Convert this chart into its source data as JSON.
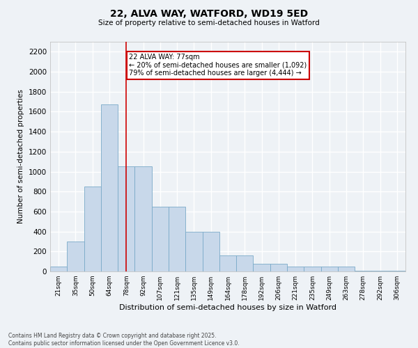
{
  "title_line1": "22, ALVA WAY, WATFORD, WD19 5ED",
  "title_line2": "Size of property relative to semi-detached houses in Watford",
  "xlabel": "Distribution of semi-detached houses by size in Watford",
  "ylabel": "Number of semi-detached properties",
  "categories": [
    "21sqm",
    "35sqm",
    "50sqm",
    "64sqm",
    "78sqm",
    "92sqm",
    "107sqm",
    "121sqm",
    "135sqm",
    "149sqm",
    "164sqm",
    "178sqm",
    "192sqm",
    "206sqm",
    "221sqm",
    "235sqm",
    "249sqm",
    "263sqm",
    "278sqm",
    "292sqm",
    "306sqm"
  ],
  "values": [
    50,
    300,
    850,
    1670,
    1050,
    1050,
    650,
    650,
    400,
    400,
    160,
    160,
    75,
    75,
    50,
    50,
    50,
    50,
    10,
    10,
    10
  ],
  "bar_color": "#c8d8ea",
  "bar_edge_color": "#7aaac8",
  "vline_x": 4,
  "vline_color": "#cc0000",
  "annotation_title": "22 ALVA WAY: 77sqm",
  "annotation_line1": "← 20% of semi-detached houses are smaller (1,092)",
  "annotation_line2": "79% of semi-detached houses are larger (4,444) →",
  "annotation_box_color": "#cc0000",
  "ylim": [
    0,
    2300
  ],
  "yticks": [
    0,
    200,
    400,
    600,
    800,
    1000,
    1200,
    1400,
    1600,
    1800,
    2000,
    2200
  ],
  "footer_line1": "Contains HM Land Registry data © Crown copyright and database right 2025.",
  "footer_line2": "Contains public sector information licensed under the Open Government Licence v3.0.",
  "bg_color": "#eef2f6",
  "grid_color": "#ffffff"
}
